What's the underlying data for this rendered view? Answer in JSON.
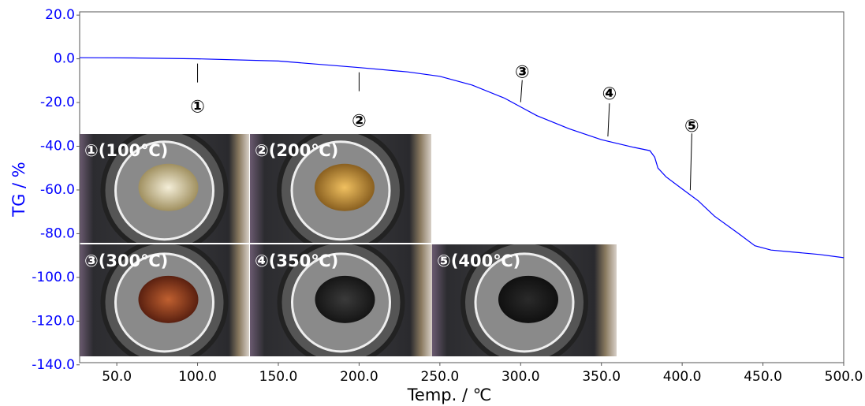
{
  "chart_data": {
    "type": "line",
    "x_label": "Temp. / ℃",
    "y_label": "TG / %",
    "color": "#0000ff",
    "x": [
      27,
      60,
      100,
      150,
      200,
      230,
      250,
      270,
      290,
      300,
      310,
      330,
      350,
      370,
      380,
      383,
      385,
      390,
      400,
      410,
      420,
      435,
      445,
      455,
      470,
      485,
      500
    ],
    "values": [
      0.5,
      0.4,
      0,
      -1,
      -4,
      -6,
      -8,
      -12,
      -18,
      -22,
      -26,
      -32,
      -37,
      -40.5,
      -42,
      -45,
      -50,
      -54,
      -59.5,
      -65,
      -72,
      -80,
      -85.5,
      -87.5,
      -88.5,
      -89.5,
      -91
    ],
    "xlim": [
      27,
      500
    ],
    "ylim": [
      -139,
      21.5
    ],
    "xticks": [
      {
        "value": 50,
        "label": "50.0"
      },
      {
        "value": 100,
        "label": "100.0"
      },
      {
        "value": 150,
        "label": "150.0"
      },
      {
        "value": 200,
        "label": "200.0"
      },
      {
        "value": 250,
        "label": "250.0"
      },
      {
        "value": 300,
        "label": "300.0"
      },
      {
        "value": 350,
        "label": "350.0"
      },
      {
        "value": 400,
        "label": "400.0"
      },
      {
        "value": 450,
        "label": "450.0"
      },
      {
        "value": 500,
        "label": "500.0"
      }
    ],
    "yticks": [
      {
        "value": 20,
        "label": "20.0"
      },
      {
        "value": 0,
        "label": "0.0"
      },
      {
        "value": -20,
        "label": "-20.0"
      },
      {
        "value": -40,
        "label": "-40.0"
      },
      {
        "value": -60,
        "label": "-60.0"
      },
      {
        "value": -80,
        "label": "-80.0"
      },
      {
        "value": -100,
        "label": "-100.0"
      },
      {
        "value": -120,
        "label": "-120.0"
      },
      {
        "value": -140,
        "label": "-140.0"
      }
    ],
    "annotations": [
      {
        "text": "①",
        "x": 100
      },
      {
        "text": "②",
        "x": 200
      },
      {
        "text": "③",
        "x": 300
      },
      {
        "text": "④",
        "x": 354
      },
      {
        "text": "⑤",
        "x": 405
      }
    ],
    "insets": [
      "①(100℃)",
      "②(200℃)",
      "③(300℃)",
      "④(350℃)",
      "⑤(400℃)"
    ]
  }
}
